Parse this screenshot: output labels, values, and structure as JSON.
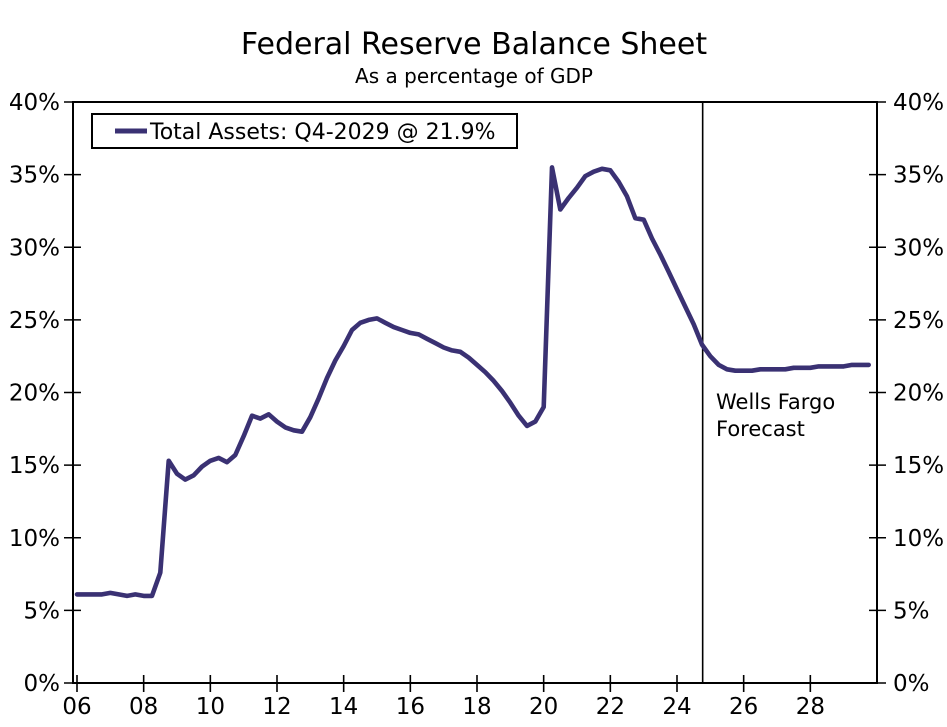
{
  "title": "Federal Reserve Balance Sheet",
  "subtitle": "As a percentage of GDP",
  "legend": {
    "label": "Total Assets: Q4-2029 @ 21.9%"
  },
  "annotation": {
    "line1": "Wells Fargo",
    "line2": "Forecast"
  },
  "colors": {
    "line": "#3a3173",
    "axis": "#000000",
    "background": "#ffffff"
  },
  "chart_data": {
    "type": "line",
    "title": "Federal Reserve Balance Sheet",
    "subtitle": "As a percentage of GDP",
    "series_name": "Total Assets",
    "legend_label": "Total Assets: Q4-2029 @ 21.9%",
    "x_range": [
      2005.88,
      2030.0
    ],
    "y_range": [
      0,
      40
    ],
    "y_ticks": [
      0,
      5,
      10,
      15,
      20,
      25,
      30,
      35,
      40
    ],
    "y_tick_labels": [
      "0%",
      "5%",
      "10%",
      "15%",
      "20%",
      "25%",
      "30%",
      "35%",
      "40%"
    ],
    "x_ticks": [
      2006,
      2008,
      2010,
      2012,
      2014,
      2016,
      2018,
      2020,
      2022,
      2024,
      2026,
      2028
    ],
    "x_tick_labels": [
      "06",
      "08",
      "10",
      "12",
      "14",
      "16",
      "18",
      "20",
      "22",
      "24",
      "26",
      "28"
    ],
    "grid": false,
    "legend_position": "top-left",
    "forecast_divider_year": 2024.77,
    "forecast_annotation": "Wells Fargo Forecast",
    "end_point": {
      "period": "Q4-2029",
      "value": 21.9
    },
    "points": [
      [
        2006.0,
        6.1
      ],
      [
        2006.25,
        6.1
      ],
      [
        2006.5,
        6.1
      ],
      [
        2006.75,
        6.1
      ],
      [
        2007.0,
        6.2
      ],
      [
        2007.25,
        6.1
      ],
      [
        2007.5,
        6.0
      ],
      [
        2007.75,
        6.1
      ],
      [
        2008.0,
        6.0
      ],
      [
        2008.25,
        6.0
      ],
      [
        2008.5,
        7.6
      ],
      [
        2008.75,
        15.3
      ],
      [
        2009.0,
        14.4
      ],
      [
        2009.25,
        14.0
      ],
      [
        2009.5,
        14.3
      ],
      [
        2009.75,
        14.9
      ],
      [
        2010.0,
        15.3
      ],
      [
        2010.25,
        15.5
      ],
      [
        2010.5,
        15.2
      ],
      [
        2010.75,
        15.7
      ],
      [
        2011.0,
        17.0
      ],
      [
        2011.25,
        18.4
      ],
      [
        2011.5,
        18.2
      ],
      [
        2011.75,
        18.5
      ],
      [
        2012.0,
        18.0
      ],
      [
        2012.25,
        17.6
      ],
      [
        2012.5,
        17.4
      ],
      [
        2012.75,
        17.3
      ],
      [
        2013.0,
        18.3
      ],
      [
        2013.25,
        19.6
      ],
      [
        2013.5,
        21.0
      ],
      [
        2013.75,
        22.2
      ],
      [
        2014.0,
        23.2
      ],
      [
        2014.25,
        24.3
      ],
      [
        2014.5,
        24.8
      ],
      [
        2014.75,
        25.0
      ],
      [
        2015.0,
        25.1
      ],
      [
        2015.25,
        24.8
      ],
      [
        2015.5,
        24.5
      ],
      [
        2015.75,
        24.3
      ],
      [
        2016.0,
        24.1
      ],
      [
        2016.25,
        24.0
      ],
      [
        2016.5,
        23.7
      ],
      [
        2016.75,
        23.4
      ],
      [
        2017.0,
        23.1
      ],
      [
        2017.25,
        22.9
      ],
      [
        2017.5,
        22.8
      ],
      [
        2017.75,
        22.4
      ],
      [
        2018.0,
        21.9
      ],
      [
        2018.25,
        21.4
      ],
      [
        2018.5,
        20.8
      ],
      [
        2018.75,
        20.1
      ],
      [
        2019.0,
        19.3
      ],
      [
        2019.25,
        18.4
      ],
      [
        2019.5,
        17.7
      ],
      [
        2019.75,
        18.0
      ],
      [
        2020.0,
        19.0
      ],
      [
        2020.25,
        35.5
      ],
      [
        2020.5,
        32.6
      ],
      [
        2020.75,
        33.4
      ],
      [
        2021.0,
        34.1
      ],
      [
        2021.25,
        34.9
      ],
      [
        2021.5,
        35.2
      ],
      [
        2021.75,
        35.4
      ],
      [
        2022.0,
        35.3
      ],
      [
        2022.25,
        34.5
      ],
      [
        2022.5,
        33.5
      ],
      [
        2022.75,
        32.0
      ],
      [
        2023.0,
        31.9
      ],
      [
        2023.25,
        30.6
      ],
      [
        2023.5,
        29.5
      ],
      [
        2023.75,
        28.3
      ],
      [
        2024.0,
        27.1
      ],
      [
        2024.25,
        25.9
      ],
      [
        2024.5,
        24.7
      ],
      [
        2024.75,
        23.3
      ],
      [
        2025.0,
        22.5
      ],
      [
        2025.25,
        21.9
      ],
      [
        2025.5,
        21.6
      ],
      [
        2025.75,
        21.5
      ],
      [
        2026.0,
        21.5
      ],
      [
        2026.25,
        21.5
      ],
      [
        2026.5,
        21.6
      ],
      [
        2026.75,
        21.6
      ],
      [
        2027.0,
        21.6
      ],
      [
        2027.25,
        21.6
      ],
      [
        2027.5,
        21.7
      ],
      [
        2027.75,
        21.7
      ],
      [
        2028.0,
        21.7
      ],
      [
        2028.25,
        21.8
      ],
      [
        2028.5,
        21.8
      ],
      [
        2028.75,
        21.8
      ],
      [
        2029.0,
        21.8
      ],
      [
        2029.25,
        21.9
      ],
      [
        2029.5,
        21.9
      ],
      [
        2029.75,
        21.9
      ]
    ]
  }
}
